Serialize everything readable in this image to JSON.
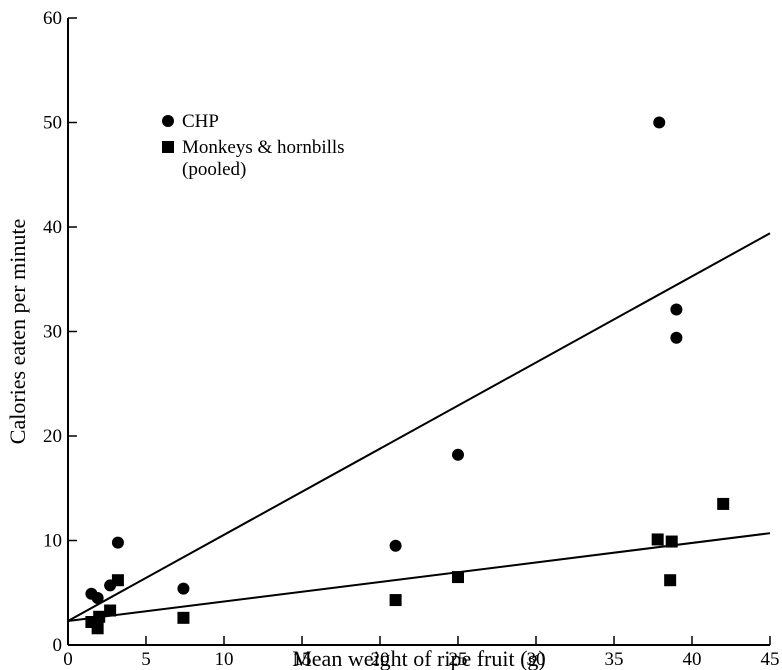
{
  "chart_data": {
    "type": "scatter",
    "title": "",
    "xlabel": "Mean weight of ripe fruit (g)",
    "ylabel": "Calories eaten per minute",
    "xlim": [
      0,
      45
    ],
    "ylim": [
      0,
      60
    ],
    "x_ticks": [
      0,
      5,
      10,
      15,
      20,
      25,
      30,
      35,
      40,
      45
    ],
    "y_ticks": [
      0,
      10,
      20,
      30,
      40,
      50,
      60
    ],
    "grid": false,
    "legend_position": "top-left",
    "series": [
      {
        "name": "CHP",
        "legend_lines": [
          "CHP"
        ],
        "marker": "circle",
        "color": "#000000",
        "points": [
          [
            1.5,
            4.9
          ],
          [
            1.9,
            4.5
          ],
          [
            2.7,
            5.7
          ],
          [
            3.2,
            9.8
          ],
          [
            7.4,
            5.4
          ],
          [
            21.0,
            9.5
          ],
          [
            25.0,
            18.2
          ],
          [
            37.9,
            50.0
          ],
          [
            39.0,
            32.1
          ],
          [
            39.0,
            29.4
          ]
        ],
        "fit_line": [
          [
            0,
            2.3
          ],
          [
            45,
            39.4
          ]
        ]
      },
      {
        "name": "Monkeys & hornbills (pooled)",
        "legend_lines": [
          "Monkeys & hornbills",
          "(pooled)"
        ],
        "marker": "square",
        "color": "#000000",
        "points": [
          [
            1.5,
            2.2
          ],
          [
            1.9,
            1.6
          ],
          [
            2.0,
            2.7
          ],
          [
            2.7,
            3.3
          ],
          [
            3.2,
            6.2
          ],
          [
            7.4,
            2.6
          ],
          [
            21.0,
            4.3
          ],
          [
            25.0,
            6.5
          ],
          [
            37.8,
            10.1
          ],
          [
            38.6,
            6.2
          ],
          [
            38.7,
            9.9
          ],
          [
            42.0,
            13.5
          ]
        ],
        "fit_line": [
          [
            0,
            2.3
          ],
          [
            45,
            10.7
          ]
        ]
      }
    ]
  }
}
